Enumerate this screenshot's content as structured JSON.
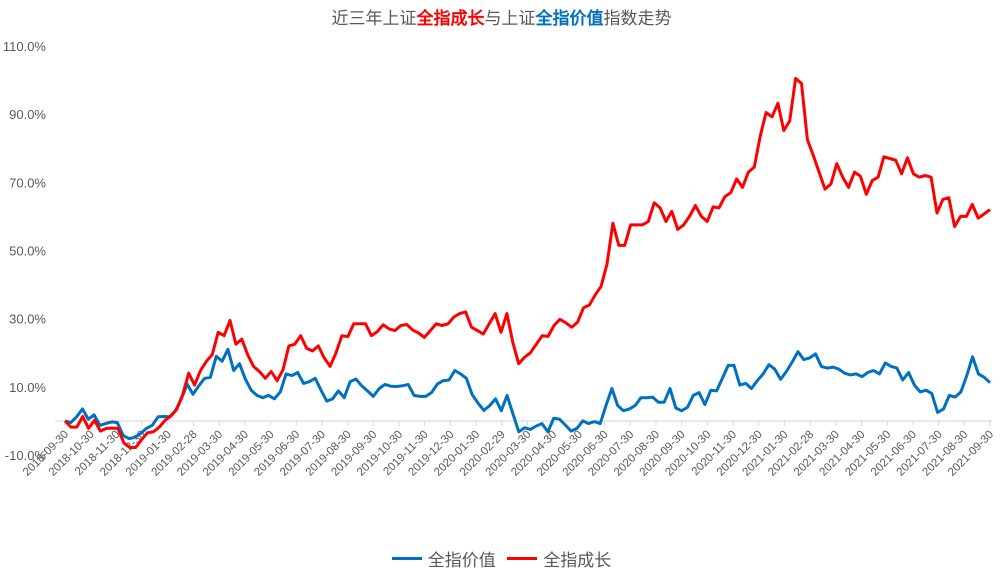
{
  "title": {
    "segments": [
      {
        "text": "近三年上证",
        "style": "normal"
      },
      {
        "text": "全指成长",
        "style": "red"
      },
      {
        "text": "与上证",
        "style": "normal"
      },
      {
        "text": "全指价值",
        "style": "blue"
      },
      {
        "text": "指数走势",
        "style": "normal"
      }
    ]
  },
  "legend": {
    "items": [
      {
        "label": "全指价值",
        "color": "#0070c0"
      },
      {
        "label": "全指成长",
        "color": "#ff0000"
      }
    ]
  },
  "chart_data": {
    "type": "line",
    "title": "近三年上证全指成长与上证全指价值指数走势",
    "xlabel": "",
    "ylabel": "",
    "ylim": [
      -10,
      110
    ],
    "yticks": [
      "-10.0%",
      "10.0%",
      "30.0%",
      "50.0%",
      "70.0%",
      "90.0%",
      "110.0%"
    ],
    "ytick_values": [
      -10,
      10,
      30,
      50,
      70,
      90,
      110
    ],
    "grid": false,
    "legend_position": "bottom",
    "x_tick_labels": [
      "2018-09-30",
      "2018-10-30",
      "2018-11-30",
      "2018-12-30",
      "2019-01-30",
      "2019-02-28",
      "2019-03-30",
      "2019-04-30",
      "2019-05-30",
      "2019-06-30",
      "2019-07-30",
      "2019-08-30",
      "2019-09-30",
      "2019-10-30",
      "2019-11-30",
      "2019-12-30",
      "2020-01-30",
      "2020-02-29",
      "2020-03-30",
      "2020-04-30",
      "2020-05-30",
      "2020-06-30",
      "2020-07-30",
      "2020-08-30",
      "2020-09-30",
      "2020-10-30",
      "2020-11-30",
      "2020-12-30",
      "2021-01-30",
      "2021-02-28",
      "2021-03-30",
      "2021-04-30",
      "2021-05-30",
      "2021-06-30",
      "2021-07-30",
      "2021-08-30",
      "2021-09-30"
    ],
    "series": [
      {
        "name": "全指价值",
        "color": "#0070c0",
        "values": [
          0,
          -0.5,
          1.2,
          3.5,
          0.5,
          1.8,
          -1.3,
          -0.8,
          -0.3,
          -0.5,
          -4.3,
          -5.2,
          -4.8,
          -3.7,
          -2.2,
          -1.3,
          1.2,
          1.3,
          1.2,
          3,
          6.5,
          10.8,
          7.8,
          10.3,
          12.5,
          12.8,
          19,
          17.5,
          21,
          14.8,
          16.8,
          12.3,
          9,
          7.5,
          6.8,
          7.5,
          6.5,
          8.5,
          13.8,
          13.3,
          14.2,
          11,
          11.5,
          12.5,
          9,
          5.8,
          6.5,
          8.8,
          6.8,
          11.5,
          12.3,
          10.3,
          8.8,
          7.2,
          9.5,
          10.7,
          10.2,
          10.1,
          10.3,
          10.7,
          7.5,
          7.2,
          7.2,
          8.3,
          10.8,
          11.8,
          12,
          14.8,
          13.8,
          12.5,
          7.7,
          5.2,
          3.1,
          4.5,
          6.5,
          3,
          7.5,
          2,
          -3.2,
          -2,
          -2.5,
          -1.5,
          -0.8,
          -3.2,
          0.8,
          0.5,
          -1.2,
          -3,
          -2.2,
          0,
          -0.8,
          -0.2,
          -0.8,
          4.5,
          9.5,
          4.5,
          3,
          3.5,
          4.5,
          6.8,
          6.8,
          7,
          5.5,
          5.5,
          9.5,
          3.8,
          3,
          4,
          7.5,
          8.3,
          4.8,
          9,
          8.8,
          12.5,
          16.3,
          16.3,
          10.5,
          11,
          9.5,
          11.8,
          13.8,
          16.5,
          15.2,
          12.2,
          14.5,
          17.3,
          20.3,
          18,
          18.5,
          19.7,
          16,
          15.5,
          15.8,
          15.2,
          14,
          13.5,
          13.8,
          13,
          14.2,
          14.8,
          13.8,
          17,
          16,
          15.5,
          12,
          14.2,
          10.5,
          8.5,
          9,
          8,
          2.5,
          3.5,
          7.5,
          7,
          8.5,
          13.2,
          18.8,
          13.8,
          12.8,
          11.2
        ]
      },
      {
        "name": "全指成长",
        "color": "#ff0000",
        "values": [
          0,
          -1.8,
          -1.8,
          1.3,
          -2.2,
          0.2,
          -3,
          -2.2,
          -2.1,
          -2.2,
          -6.5,
          -7.8,
          -7.8,
          -5.5,
          -3.5,
          -3.2,
          -1.8,
          0.2,
          1.5,
          3.5,
          7.8,
          14,
          10.5,
          14.8,
          17.5,
          19.5,
          26,
          25,
          29.5,
          22.5,
          24,
          19.5,
          16,
          14.5,
          12.5,
          14.5,
          11.8,
          15,
          22,
          22.5,
          25,
          21.3,
          20.5,
          22,
          18.5,
          16,
          20,
          25,
          24.7,
          28.5,
          28.5,
          28.5,
          25,
          26.2,
          28.2,
          27,
          26.5,
          28,
          28.3,
          26.7,
          25.8,
          24.5,
          26.5,
          28.5,
          28,
          28.5,
          30.5,
          31.5,
          32,
          27.5,
          26.5,
          25.5,
          28.5,
          31.5,
          26,
          31.5,
          23,
          16.8,
          18.7,
          20,
          22.5,
          25,
          24.8,
          28,
          29.8,
          28.8,
          27.5,
          29,
          33.2,
          34,
          37,
          39.5,
          46,
          58,
          51.5,
          51.5,
          57.5,
          57.5,
          57.5,
          58.5,
          64,
          62.5,
          58.5,
          61.5,
          56.2,
          57.5,
          60,
          63.2,
          60,
          58.5,
          62.8,
          62.5,
          65.8,
          67,
          71,
          68.5,
          73,
          74.5,
          83.5,
          90.5,
          89.2,
          93.2,
          85.2,
          88,
          100.5,
          99,
          82.5,
          78,
          73,
          68,
          69.5,
          75.5,
          71.5,
          68.5,
          73,
          71.8,
          66.5,
          70.5,
          71.5,
          77.5,
          77,
          76.5,
          72.5,
          77.2,
          72.5,
          71.5,
          72,
          71.5,
          61,
          65,
          65.5,
          57,
          60,
          60,
          63.5,
          59.5,
          60.7,
          62
        ]
      }
    ]
  }
}
